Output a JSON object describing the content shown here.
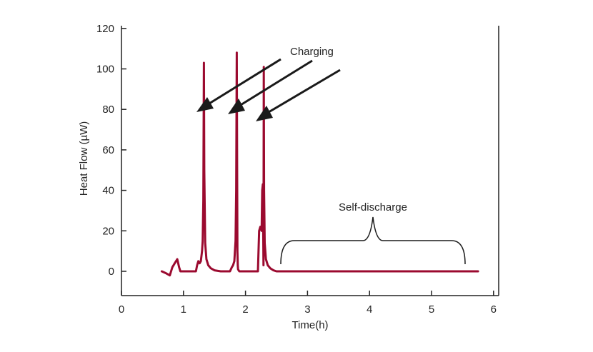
{
  "chart_data": {
    "type": "line",
    "title": "",
    "xlabel": "Time(h)",
    "ylabel": "Heat Flow (µW)",
    "xlim": [
      0,
      6
    ],
    "ylim": [
      -12,
      120
    ],
    "x_ticks": [
      0,
      1,
      2,
      3,
      4,
      5,
      6
    ],
    "y_ticks": [
      0,
      20,
      40,
      60,
      80,
      100,
      120
    ],
    "grid": false,
    "line_color": "#9b0a2f",
    "series": [
      {
        "name": "Heat Flow",
        "x": [
          0.65,
          0.72,
          0.78,
          0.82,
          0.86,
          0.9,
          0.93,
          0.95,
          1.0,
          1.15,
          1.2,
          1.22,
          1.24,
          1.26,
          1.28,
          1.3,
          1.31,
          1.32,
          1.33,
          1.335,
          1.35,
          1.37,
          1.4,
          1.44,
          1.5,
          1.6,
          1.75,
          1.78,
          1.8,
          1.82,
          1.84,
          1.85,
          1.86,
          1.865,
          1.87,
          1.875,
          1.88,
          1.9,
          2.0,
          2.05,
          2.2,
          2.22,
          2.24,
          2.26,
          2.27,
          2.28,
          2.29,
          2.295,
          2.3,
          2.31,
          2.33,
          2.36,
          2.4,
          2.45,
          2.5,
          2.6,
          3.0,
          4.0,
          5.0,
          5.75
        ],
        "y": [
          0,
          -1,
          -2,
          2,
          4,
          6,
          2,
          0,
          0,
          0,
          0,
          3,
          5,
          4,
          5,
          10,
          15,
          35,
          103,
          50,
          14,
          6,
          3,
          1.5,
          0.5,
          0,
          0,
          2,
          3,
          5,
          15,
          40,
          108,
          50,
          10,
          3,
          1,
          0,
          0,
          0,
          0,
          20,
          22,
          20,
          40,
          43,
          3,
          101,
          40,
          14,
          6,
          3,
          1.5,
          0.5,
          0,
          0,
          0,
          0,
          0,
          0
        ]
      }
    ],
    "annotations": {
      "charging": "Charging",
      "self_discharge": "Self-discharge"
    }
  }
}
